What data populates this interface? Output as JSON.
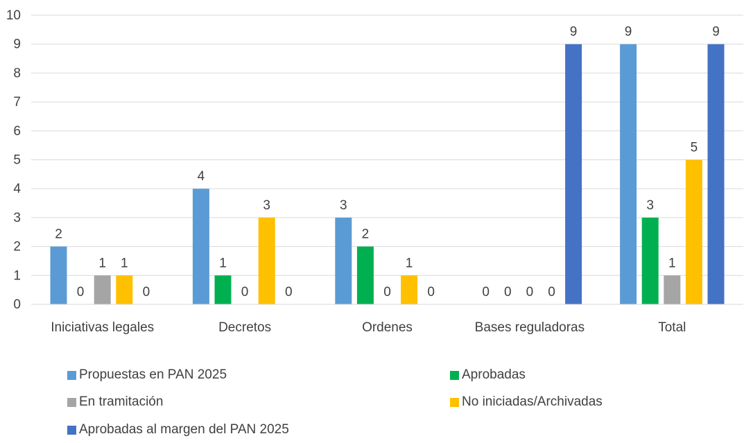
{
  "chart_data": {
    "type": "bar",
    "categories": [
      "Iniciativas legales",
      "Decretos",
      "Ordenes",
      "Bases reguladoras",
      "Total"
    ],
    "series": [
      {
        "name": "Propuestas en PAN 2025",
        "color": "#5B9BD5",
        "values": [
          2,
          4,
          3,
          0,
          9
        ]
      },
      {
        "name": "Aprobadas",
        "color": "#00B050",
        "values": [
          0,
          1,
          2,
          0,
          3
        ]
      },
      {
        "name": "En tramitación",
        "color": "#A5A5A5",
        "values": [
          1,
          0,
          0,
          0,
          1
        ]
      },
      {
        "name": "No iniciadas/Archivadas",
        "color": "#FFC000",
        "values": [
          1,
          3,
          1,
          0,
          5
        ]
      },
      {
        "name": "Aprobadas al margen del PAN 2025",
        "color": "#4472C4",
        "values": [
          0,
          0,
          0,
          9,
          9
        ]
      }
    ],
    "yticks": [
      "0",
      "1",
      "2",
      "3",
      "4",
      "5",
      "6",
      "7",
      "8",
      "9",
      "10"
    ],
    "ylim": [
      0,
      10
    ],
    "grid": true,
    "data_labels": true,
    "legend_position": "bottom",
    "title": "",
    "xlabel": "",
    "ylabel": ""
  }
}
